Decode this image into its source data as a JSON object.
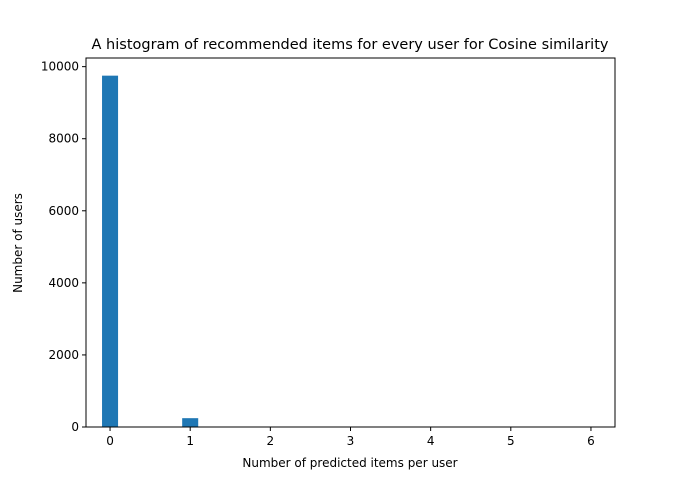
{
  "chart_data": {
    "type": "bar",
    "title": "A histogram of recommended items for every user for Cosine similarity",
    "xlabel": "Number of predicted items per user",
    "ylabel": "Number of users",
    "xlim": [
      -0.3,
      6.3
    ],
    "ylim": [
      0,
      10240
    ],
    "x_ticks": [
      0,
      1,
      2,
      3,
      4,
      5,
      6
    ],
    "y_ticks": [
      0,
      2000,
      4000,
      6000,
      8000,
      10000
    ],
    "bin_width": 0.2,
    "bins": [
      {
        "x": 0,
        "value": 9750
      },
      {
        "x": 1,
        "value": 245
      }
    ],
    "color": "#1f77b4",
    "grid": false,
    "legend": "none"
  }
}
